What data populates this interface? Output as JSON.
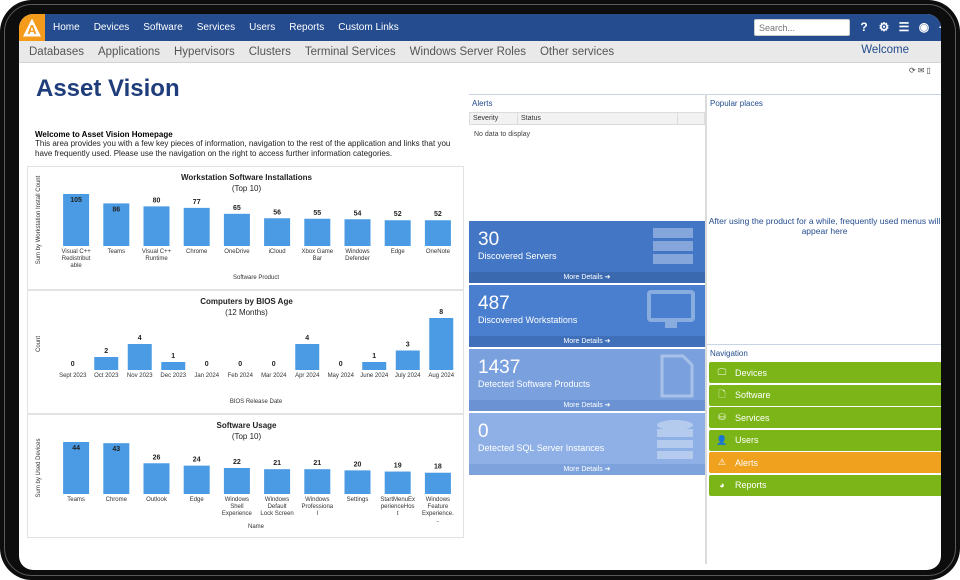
{
  "topnav": {
    "logo": "A",
    "items": [
      "Home",
      "Devices",
      "Software",
      "Services",
      "Users",
      "Reports",
      "Custom Links"
    ],
    "search_placeholder": "Search..."
  },
  "subnav": {
    "items": [
      "Databases",
      "Applications",
      "Hypervisors",
      "Clusters",
      "Terminal Services",
      "Windows Server Roles",
      "Other services"
    ],
    "welcome": "Welcome"
  },
  "page": {
    "title": "Asset Vision",
    "welcome_heading": "Welcome to Asset Vision Homepage",
    "welcome_text": "This area provides you with a few key pieces of information, navigation to the rest of the application and links that you have frequently used. Please use the navigation on the right to access further information categories."
  },
  "alerts": {
    "title": "Alerts",
    "columns": [
      "Severity",
      "Status"
    ],
    "empty": "No data to display"
  },
  "popular": {
    "title": "Popular places",
    "message": "After using the product for a while, frequently used menus will appear here"
  },
  "kpis": [
    {
      "value": "30",
      "label": "Discovered Servers",
      "more": "More Details ➔",
      "color": "#4377c6",
      "bar": "#3a69b0",
      "icon": "server-icon"
    },
    {
      "value": "487",
      "label": "Discovered Workstations",
      "more": "More Details ➔",
      "color": "#4a7fcf",
      "bar": "#3e6fb8",
      "icon": "monitor-icon"
    },
    {
      "value": "1437",
      "label": "Detected Software Products",
      "more": "More Details ➔",
      "color": "#7aa0de",
      "bar": "#6b92d2",
      "icon": "document-icon"
    },
    {
      "value": "0",
      "label": "Detected SQL Server Instances",
      "more": "More Details ➔",
      "color": "#8eb0e6",
      "bar": "#7ea2dc",
      "icon": "database-icon"
    }
  ],
  "navigation": {
    "title": "Navigation",
    "items": [
      {
        "label": "Devices",
        "color": "#7cb518",
        "icon": "monitor-icon"
      },
      {
        "label": "Software",
        "color": "#7cb518",
        "icon": "file-icon"
      },
      {
        "label": "Services",
        "color": "#7cb518",
        "icon": "database-icon"
      },
      {
        "label": "Users",
        "color": "#7cb518",
        "icon": "user-icon"
      },
      {
        "label": "Alerts",
        "color": "#f0a11e",
        "icon": "warning-icon"
      },
      {
        "label": "Reports",
        "color": "#7cb518",
        "icon": "pie-chart-icon"
      }
    ]
  },
  "chart_data": [
    {
      "type": "bar",
      "title": "Workstation Software Installations",
      "subtitle": "(Top 10)",
      "xlabel": "Software Product",
      "ylabel": "Sum by Workstation Install Count",
      "categories": [
        "Visual C++ Redistributable",
        "Teams",
        "Visual C++ Runtime",
        "Chrome",
        "OneDrive",
        "iCloud",
        "Xbox Game Bar",
        "Windows Defender",
        "Edge",
        "OneNote"
      ],
      "values": [
        105,
        86,
        80,
        77,
        65,
        56,
        55,
        54,
        52,
        52
      ],
      "ylim": [
        0,
        120
      ]
    },
    {
      "type": "bar",
      "title": "Computers by BIOS Age",
      "subtitle": "(12 Months)",
      "xlabel": "BIOS Release Date",
      "ylabel": "Count",
      "categories": [
        "Sept 2023",
        "Oct 2023",
        "Nov 2023",
        "Dec 2023",
        "Jan 2024",
        "Feb 2024",
        "Mar 2024",
        "Apr 2024",
        "May 2024",
        "June 2024",
        "July 2024",
        "Aug 2024"
      ],
      "values": [
        0,
        2,
        4,
        1,
        0,
        0,
        0,
        4,
        0,
        1,
        3,
        8
      ],
      "ylim": [
        0,
        8
      ]
    },
    {
      "type": "bar",
      "title": "Software Usage",
      "subtitle": "(Top 10)",
      "xlabel": "Name",
      "ylabel": "Sum by Used Devices",
      "categories": [
        "Teams",
        "Chrome",
        "Outlook",
        "Edge",
        "Windows Shell Experience",
        "Windows Default Lock Screen",
        "Windows Professional",
        "Settings",
        "StartMenuExperienceHost",
        "Windows Feature Experience..."
      ],
      "values": [
        44,
        43,
        26,
        24,
        22,
        21,
        21,
        20,
        19,
        18
      ],
      "ylim": [
        0,
        50
      ]
    }
  ]
}
